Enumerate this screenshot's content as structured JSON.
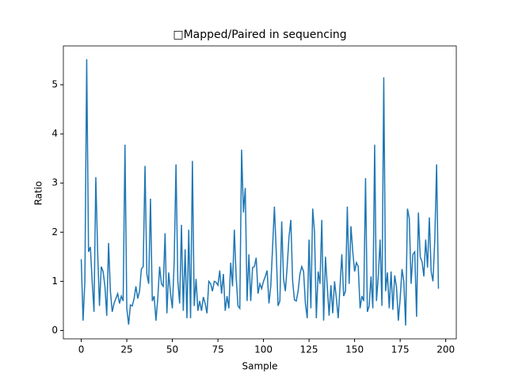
{
  "chart_data": {
    "type": "line",
    "title": "□Mapped/Paired in sequencing",
    "xlabel": "Sample",
    "ylabel": "Ratio",
    "series": [
      {
        "name": "Ratio",
        "color": "#1f77b4",
        "values": [
          1.45,
          0.2,
          1.0,
          5.52,
          1.6,
          1.7,
          1.0,
          0.38,
          3.12,
          1.6,
          0.5,
          1.3,
          1.2,
          0.9,
          0.3,
          1.78,
          0.8,
          0.38,
          0.55,
          0.65,
          0.75,
          0.55,
          0.7,
          0.6,
          3.78,
          0.45,
          0.12,
          0.52,
          0.5,
          0.65,
          0.9,
          0.65,
          0.8,
          1.25,
          1.3,
          3.35,
          1.15,
          0.95,
          2.68,
          0.6,
          0.7,
          0.2,
          0.65,
          1.3,
          0.95,
          0.9,
          1.98,
          0.35,
          1.18,
          0.75,
          0.45,
          1.4,
          3.38,
          1.0,
          0.55,
          2.15,
          0.4,
          1.65,
          0.25,
          2.05,
          0.25,
          3.45,
          0.5,
          1.05,
          0.4,
          0.6,
          0.4,
          0.68,
          0.55,
          0.35,
          1.0,
          0.95,
          0.8,
          1.0,
          0.98,
          0.92,
          1.22,
          0.75,
          1.15,
          0.4,
          0.7,
          0.45,
          1.38,
          0.9,
          2.05,
          1.1,
          0.5,
          0.45,
          3.68,
          2.4,
          2.9,
          0.6,
          1.55,
          0.6,
          1.28,
          1.3,
          1.48,
          0.75,
          0.95,
          0.85,
          1.0,
          1.1,
          1.22,
          0.55,
          0.9,
          1.7,
          2.52,
          1.6,
          0.5,
          0.6,
          2.22,
          1.05,
          0.8,
          1.3,
          1.9,
          2.25,
          1.0,
          0.62,
          0.6,
          0.8,
          1.15,
          1.3,
          1.2,
          0.55,
          0.25,
          1.85,
          0.45,
          2.48,
          2.0,
          0.25,
          1.2,
          0.95,
          2.25,
          0.2,
          1.5,
          0.9,
          0.3,
          0.92,
          0.35,
          1.0,
          0.65,
          0.25,
          0.9,
          1.55,
          0.7,
          0.8,
          2.52,
          0.95,
          2.12,
          1.6,
          1.2,
          1.38,
          1.3,
          0.45,
          0.7,
          0.6,
          3.1,
          0.38,
          0.5,
          1.1,
          0.45,
          3.78,
          0.6,
          1.1,
          1.85,
          0.5,
          5.15,
          0.8,
          1.18,
          0.45,
          1.2,
          0.42,
          1.12,
          0.88,
          0.2,
          0.65,
          1.25,
          1.0,
          0.1,
          2.48,
          2.28,
          0.95,
          1.55,
          1.6,
          0.28,
          2.4,
          1.5,
          1.4,
          1.1,
          1.85,
          1.28,
          2.3,
          1.2,
          1.0,
          1.85,
          3.38,
          0.85
        ]
      }
    ],
    "xlim": [
      -9.8,
      205.8
    ],
    "xticks": [
      0,
      25,
      50,
      75,
      100,
      125,
      150,
      175,
      200
    ],
    "ylim": [
      -0.17,
      5.79
    ],
    "yticks": [
      0,
      1,
      2,
      3,
      4,
      5
    ]
  }
}
